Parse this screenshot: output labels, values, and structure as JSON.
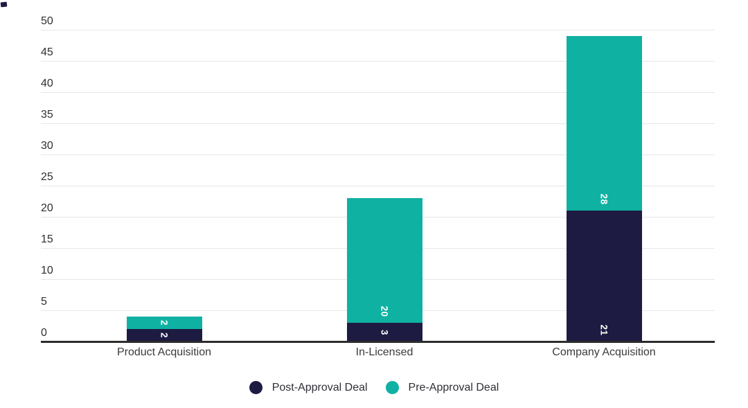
{
  "chart_data": {
    "type": "bar",
    "variant": "stacked-column",
    "title": "",
    "xlabel": "",
    "ylabel": "",
    "categories": [
      "Product Acquisition",
      "In-Licensed",
      "Company Acquisition"
    ],
    "series": [
      {
        "name": "Post-Approval Deal",
        "color": "#1e1b42",
        "values": [
          2,
          3,
          21
        ]
      },
      {
        "name": "Pre-Approval Deal",
        "color": "#0fb1a2",
        "values": [
          2,
          20,
          28
        ]
      }
    ],
    "stack_totals": [
      4,
      23,
      49
    ],
    "ylim": [
      0,
      50
    ],
    "ytick_step": 5,
    "ytick_labels": [
      "0",
      "5",
      "10",
      "15",
      "20",
      "25",
      "30",
      "35",
      "40",
      "45",
      "50"
    ],
    "grid": true,
    "value_labels_shown": true,
    "value_label_rotation_deg": 90,
    "value_label_color": "#ffffff",
    "legend_position": "bottom-center",
    "legend_marker": "circle"
  },
  "colors": {
    "background": "#ffffff",
    "gridline": "#e7e7e7",
    "axis_line": "#2b2b2b",
    "tick_text": "#2f2f2f",
    "category_text": "#3a3a3a",
    "legend_text": "#2e2e38"
  }
}
